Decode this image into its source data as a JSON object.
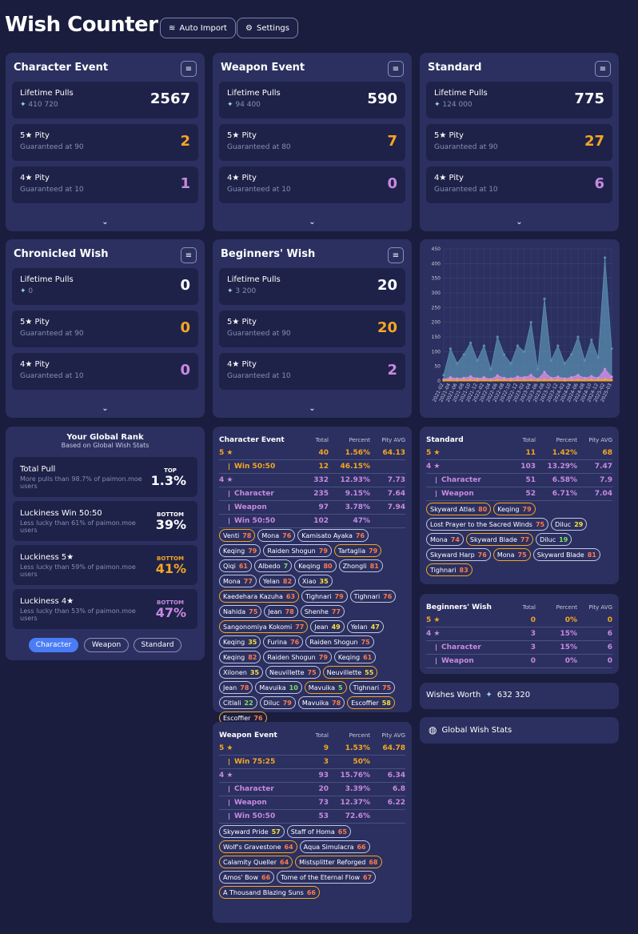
{
  "header": {
    "title": "Wish Counter",
    "auto_import": "Auto Import",
    "settings": "Settings"
  },
  "labels": {
    "lifetime": "Lifetime Pulls",
    "five": "5★ Pity",
    "four": "4★ Pity"
  },
  "banners": [
    {
      "title": "Character Event",
      "lifetime": "2567",
      "primos": "410 720",
      "five": "2",
      "five_sub": "Guaranteed at 90",
      "four": "1",
      "four_sub": "Guaranteed at 10"
    },
    {
      "title": "Weapon Event",
      "lifetime": "590",
      "primos": "94 400",
      "five": "7",
      "five_sub": "Guaranteed at 80",
      "four": "0",
      "four_sub": "Guaranteed at 10"
    },
    {
      "title": "Standard",
      "lifetime": "775",
      "primos": "124 000",
      "five": "27",
      "five_sub": "Guaranteed at 90",
      "four": "6",
      "four_sub": "Guaranteed at 10"
    },
    {
      "title": "Chronicled Wish",
      "lifetime": "0",
      "primos": "0",
      "five": "0",
      "five_sub": "Guaranteed at 90",
      "four": "0",
      "four_sub": "Guaranteed at 10"
    },
    {
      "title": "Beginners' Wish",
      "lifetime": "20",
      "primos": "3 200",
      "five": "20",
      "five_sub": "Guaranteed at 90",
      "four": "2",
      "four_sub": "Guaranteed at 10"
    }
  ],
  "chart_data": {
    "type": "area",
    "y_ticks": [
      "450",
      "400",
      "350",
      "300",
      "250",
      "200",
      "150",
      "100",
      "50",
      "0"
    ],
    "ylim": [
      0,
      450
    ],
    "x": [
      "2021-02",
      "2021-04",
      "2021-06",
      "2021-08",
      "2021-10",
      "2021-12",
      "2022-02",
      "2022-04",
      "2022-06",
      "2022-08",
      "2022-10",
      "2022-12",
      "2023-02",
      "2023-04",
      "2023-06",
      "2023-08",
      "2023-10",
      "2023-12",
      "2024-02",
      "2024-04",
      "2024-06",
      "2024-08",
      "2024-10",
      "2024-12",
      "2025-02",
      "2025-03"
    ],
    "series": [
      {
        "color": "#5b8db0",
        "values": [
          20,
          110,
          60,
          90,
          130,
          70,
          120,
          40,
          150,
          90,
          60,
          120,
          100,
          200,
          40,
          280,
          70,
          120,
          60,
          90,
          150,
          70,
          140,
          80,
          420,
          110
        ]
      },
      {
        "color": "#d68ae8",
        "values": [
          5,
          12,
          8,
          10,
          15,
          8,
          12,
          6,
          18,
          10,
          8,
          14,
          12,
          20,
          6,
          30,
          10,
          14,
          8,
          12,
          20,
          10,
          16,
          10,
          40,
          14
        ]
      },
      {
        "color": "#f5a623",
        "values": [
          2,
          3,
          2,
          3,
          4,
          2,
          3,
          2,
          4,
          3,
          2,
          3,
          3,
          4,
          2,
          5,
          3,
          3,
          2,
          3,
          4,
          3,
          4,
          3,
          6,
          3
        ]
      }
    ]
  },
  "rank": {
    "title": "Your Global Rank",
    "subtitle": "Based on Global Wish Stats",
    "rows": [
      {
        "label": "Total Pull",
        "sub": "More pulls than 98.7% of paimon.moe users",
        "tag": "TOP",
        "pct": "1.3%",
        "color": "#ffffff"
      },
      {
        "label": "Luckiness Win 50:50",
        "sub": "Less lucky than 61% of paimon.moe users",
        "tag": "BOTTOM",
        "pct": "39%",
        "color": "#ffffff"
      },
      {
        "label": "Luckiness 5★",
        "sub": "Less lucky than 59% of paimon.moe users",
        "tag": "BOTTOM",
        "pct": "41%",
        "color": "#f5a623"
      },
      {
        "label": "Luckiness 4★",
        "sub": "Less lucky than 53% of paimon.moe users",
        "tag": "BOTTOM",
        "pct": "47%",
        "color": "#c88ae0"
      }
    ],
    "tabs": [
      "Character",
      "Weapon",
      "Standard"
    ]
  },
  "cols": {
    "total": "Total",
    "percent": "Percent",
    "pity": "Pity AVG"
  },
  "char_stats": {
    "title": "Character Event",
    "rows": [
      {
        "n": "5 ★",
        "t": "40",
        "p": "1.56%",
        "a": "64.13",
        "c": "gold",
        "i": 0
      },
      {
        "n": "Win 50:50",
        "t": "12",
        "p": "46.15%",
        "a": "",
        "c": "gold",
        "i": 1
      },
      {
        "n": "4 ★",
        "t": "332",
        "p": "12.93%",
        "a": "7.73",
        "c": "purple",
        "i": 0
      },
      {
        "n": "Character",
        "t": "235",
        "p": "9.15%",
        "a": "7.64",
        "c": "purple",
        "i": 1
      },
      {
        "n": "Weapon",
        "t": "97",
        "p": "3.78%",
        "a": "7.94",
        "c": "purple",
        "i": 1
      },
      {
        "n": "Win 50:50",
        "t": "102",
        "p": "47%",
        "a": "",
        "c": "purple",
        "i": 1
      }
    ],
    "chips": [
      {
        "n": "Venti",
        "p": "78",
        "c": "pr",
        "g": true
      },
      {
        "n": "Mona",
        "p": "76",
        "c": "pr"
      },
      {
        "n": "Kamisato Ayaka",
        "p": "76",
        "c": "pr"
      },
      {
        "n": "Keqing",
        "p": "79",
        "c": "pr"
      },
      {
        "n": "Raiden Shogun",
        "p": "79",
        "c": "pr"
      },
      {
        "n": "Tartaglia",
        "p": "79",
        "c": "pr",
        "g": true
      },
      {
        "n": "Qiqi",
        "p": "61",
        "c": "pr"
      },
      {
        "n": "Albedo",
        "p": "7",
        "c": "pg"
      },
      {
        "n": "Keqing",
        "p": "80",
        "c": "pr"
      },
      {
        "n": "Zhongli",
        "p": "81",
        "c": "pr"
      },
      {
        "n": "Mona",
        "p": "77",
        "c": "pr"
      },
      {
        "n": "Yelan",
        "p": "82",
        "c": "pr"
      },
      {
        "n": "Xiao",
        "p": "35",
        "c": "py"
      },
      {
        "n": "Kaedehara Kazuha",
        "p": "63",
        "c": "pr",
        "g": true
      },
      {
        "n": "Tighnari",
        "p": "79",
        "c": "pr"
      },
      {
        "n": "Tighnari",
        "p": "76",
        "c": "pr"
      },
      {
        "n": "Nahida",
        "p": "75",
        "c": "pr"
      },
      {
        "n": "Jean",
        "p": "78",
        "c": "pr"
      },
      {
        "n": "Shenhe",
        "p": "77",
        "c": "pr"
      },
      {
        "n": "Sangonomiya Kokomi",
        "p": "77",
        "c": "pr",
        "g": true
      },
      {
        "n": "Jean",
        "p": "49",
        "c": "py"
      },
      {
        "n": "Yelan",
        "p": "47",
        "c": "py"
      },
      {
        "n": "Keqing",
        "p": "35",
        "c": "py"
      },
      {
        "n": "Furina",
        "p": "76",
        "c": "pr"
      },
      {
        "n": "Raiden Shogun",
        "p": "75",
        "c": "pr"
      },
      {
        "n": "Keqing",
        "p": "82",
        "c": "pr"
      },
      {
        "n": "Raiden Shogun",
        "p": "79",
        "c": "pr"
      },
      {
        "n": "Keqing",
        "p": "61",
        "c": "pr"
      },
      {
        "n": "Xilonen",
        "p": "35",
        "c": "py"
      },
      {
        "n": "Neuvillette",
        "p": "75",
        "c": "pr"
      },
      {
        "n": "Neuvillette",
        "p": "55",
        "c": "py",
        "g": true
      },
      {
        "n": "Jean",
        "p": "78",
        "c": "pr"
      },
      {
        "n": "Mavuika",
        "p": "10",
        "c": "pg"
      },
      {
        "n": "Mavuika",
        "p": "5",
        "c": "pg",
        "g": true
      },
      {
        "n": "Tighnari",
        "p": "75",
        "c": "pr"
      },
      {
        "n": "Citlali",
        "p": "22",
        "c": "pg"
      },
      {
        "n": "Diluc",
        "p": "79",
        "c": "pr"
      },
      {
        "n": "Mavuika",
        "p": "78",
        "c": "pr"
      },
      {
        "n": "Escoffier",
        "p": "58",
        "c": "py",
        "g": true
      },
      {
        "n": "Escoffier",
        "p": "76",
        "c": "pr",
        "g": true
      }
    ]
  },
  "weapon_stats": {
    "title": "Weapon Event",
    "rows": [
      {
        "n": "5 ★",
        "t": "9",
        "p": "1.53%",
        "a": "64.78",
        "c": "gold",
        "i": 0
      },
      {
        "n": "Win 75:25",
        "t": "3",
        "p": "50%",
        "a": "",
        "c": "gold",
        "i": 1
      },
      {
        "n": "4 ★",
        "t": "93",
        "p": "15.76%",
        "a": "6.34",
        "c": "purple",
        "i": 0
      },
      {
        "n": "Character",
        "t": "20",
        "p": "3.39%",
        "a": "6.8",
        "c": "purple",
        "i": 1
      },
      {
        "n": "Weapon",
        "t": "73",
        "p": "12.37%",
        "a": "6.22",
        "c": "purple",
        "i": 1
      },
      {
        "n": "Win 50:50",
        "t": "53",
        "p": "72.6%",
        "a": "",
        "c": "purple",
        "i": 1
      }
    ],
    "chips": [
      {
        "n": "Skyward Pride",
        "p": "57",
        "c": "py"
      },
      {
        "n": "Staff of Homa",
        "p": "65",
        "c": "pr"
      },
      {
        "n": "Wolf's Gravestone",
        "p": "64",
        "c": "pr",
        "g": true
      },
      {
        "n": "Aqua Simulacra",
        "p": "66",
        "c": "pr"
      },
      {
        "n": "Calamity Queller",
        "p": "64",
        "c": "pr",
        "g": true
      },
      {
        "n": "Mistsplitter Reforged",
        "p": "68",
        "c": "pr",
        "g": true
      },
      {
        "n": "Amos' Bow",
        "p": "66",
        "c": "pr"
      },
      {
        "n": "Tome of the Eternal Flow",
        "p": "67",
        "c": "pr"
      },
      {
        "n": "A Thousand Blazing Suns",
        "p": "66",
        "c": "pr",
        "g": true
      }
    ]
  },
  "standard_stats": {
    "title": "Standard",
    "rows": [
      {
        "n": "5 ★",
        "t": "11",
        "p": "1.42%",
        "a": "68",
        "c": "gold",
        "i": 0
      },
      {
        "n": "4 ★",
        "t": "103",
        "p": "13.29%",
        "a": "7.47",
        "c": "purple",
        "i": 0
      },
      {
        "n": "Character",
        "t": "51",
        "p": "6.58%",
        "a": "7.9",
        "c": "purple",
        "i": 1
      },
      {
        "n": "Weapon",
        "t": "52",
        "p": "6.71%",
        "a": "7.04",
        "c": "purple",
        "i": 1
      }
    ],
    "chips": [
      {
        "n": "Skyward Atlas",
        "p": "80",
        "c": "pr",
        "g": true
      },
      {
        "n": "Keqing",
        "p": "79",
        "c": "pr",
        "g": true
      },
      {
        "n": "Lost Prayer to the Sacred Winds",
        "p": "75",
        "c": "pr"
      },
      {
        "n": "Diluc",
        "p": "29",
        "c": "py"
      },
      {
        "n": "Mona",
        "p": "74",
        "c": "pr"
      },
      {
        "n": "Skyward Blade",
        "p": "77",
        "c": "pr",
        "g": true
      },
      {
        "n": "Diluc",
        "p": "19",
        "c": "pg"
      },
      {
        "n": "Skyward Harp",
        "p": "76",
        "c": "pr"
      },
      {
        "n": "Mona",
        "p": "75",
        "c": "pr",
        "g": true
      },
      {
        "n": "Skyward Blade",
        "p": "81",
        "c": "pr"
      },
      {
        "n": "Tighnari",
        "p": "83",
        "c": "pr",
        "g": true
      }
    ]
  },
  "beginner_stats": {
    "title": "Beginners' Wish",
    "rows": [
      {
        "n": "5 ★",
        "t": "0",
        "p": "0%",
        "a": "0",
        "c": "gold",
        "i": 0
      },
      {
        "n": "4 ★",
        "t": "3",
        "p": "15%",
        "a": "6",
        "c": "purple",
        "i": 0
      },
      {
        "n": "Character",
        "t": "3",
        "p": "15%",
        "a": "6",
        "c": "purple",
        "i": 1
      },
      {
        "n": "Weapon",
        "t": "0",
        "p": "0%",
        "a": "0",
        "c": "purple",
        "i": 1
      }
    ]
  },
  "wishes_worth": {
    "label": "Wishes Worth",
    "value": "632 320"
  },
  "global_stats": "Global Wish Stats"
}
